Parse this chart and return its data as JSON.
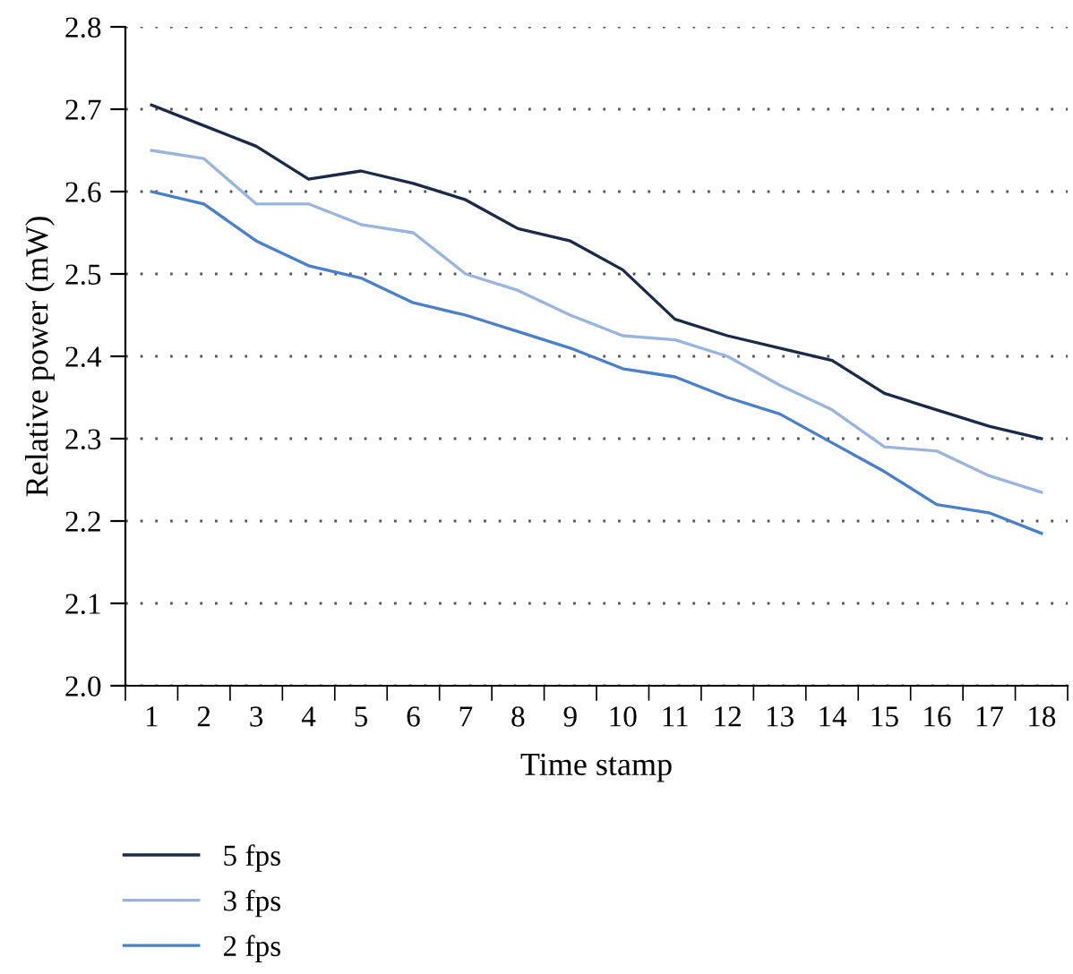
{
  "chart_data": {
    "type": "line",
    "xlabel": "Time stamp",
    "ylabel": "Relative power (mW)",
    "categories": [
      "1",
      "2",
      "3",
      "4",
      "5",
      "6",
      "7",
      "8",
      "9",
      "10",
      "11",
      "12",
      "13",
      "14",
      "15",
      "16",
      "17",
      "18"
    ],
    "series": [
      {
        "name": "5 fps",
        "color": "#1b2a45",
        "values": [
          2.705,
          2.68,
          2.655,
          2.615,
          2.625,
          2.61,
          2.59,
          2.555,
          2.54,
          2.505,
          2.445,
          2.425,
          2.41,
          2.395,
          2.355,
          2.335,
          2.315,
          2.3
        ]
      },
      {
        "name": "3 fps",
        "color": "#9ab5dc",
        "values": [
          2.65,
          2.64,
          2.585,
          2.585,
          2.56,
          2.55,
          2.5,
          2.48,
          2.45,
          2.425,
          2.42,
          2.4,
          2.365,
          2.335,
          2.29,
          2.285,
          2.255,
          2.235
        ]
      },
      {
        "name": "2 fps",
        "color": "#4a7fc9",
        "values": [
          2.6,
          2.585,
          2.54,
          2.51,
          2.495,
          2.465,
          2.45,
          2.43,
          2.41,
          2.385,
          2.375,
          2.35,
          2.33,
          2.295,
          2.26,
          2.22,
          2.21,
          2.185
        ]
      }
    ],
    "ylim": [
      2.0,
      2.8
    ],
    "yticks": [
      {
        "value": 2.0,
        "label": "2.0"
      },
      2.1,
      2.2,
      2.3,
      2.4,
      2.5,
      2.6,
      2.7,
      2.8
    ],
    "grid": "y",
    "legend": "bottom left",
    "line_style": "solid",
    "marker": "none"
  }
}
